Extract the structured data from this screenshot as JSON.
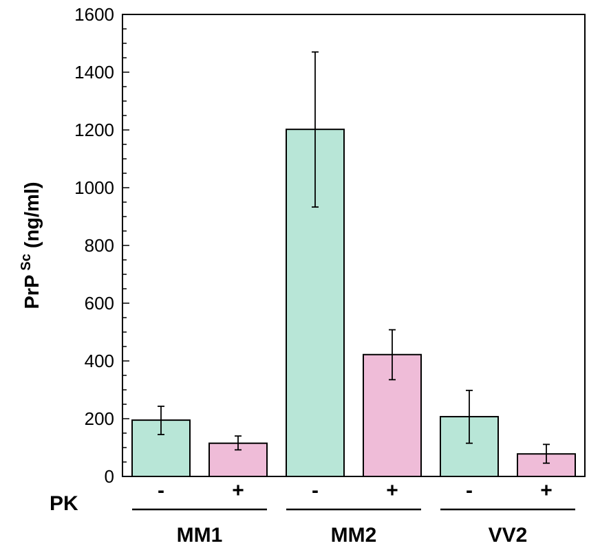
{
  "chart_data": {
    "type": "bar",
    "ylabel_main": "PrP",
    "ylabel_sup": "Sc",
    "ylabel_unit": "(ng/ml)",
    "ylim": [
      0,
      1600
    ],
    "yticks": [
      "0",
      "200",
      "400",
      "600",
      "800",
      "1000",
      "1200",
      "1400",
      "1600"
    ],
    "minor_ytick_step": 50,
    "grid": false,
    "row_label": "PK",
    "groups": [
      {
        "label": "MM1",
        "bars": [
          {
            "pk": "-",
            "value": 195,
            "err_low": 145,
            "err_high": 243
          },
          {
            "pk": "+",
            "value": 115,
            "err_low": 92,
            "err_high": 140
          }
        ]
      },
      {
        "label": "MM2",
        "bars": [
          {
            "pk": "-",
            "value": 1202,
            "err_low": 933,
            "err_high": 1470
          },
          {
            "pk": "+",
            "value": 422,
            "err_low": 335,
            "err_high": 508
          }
        ]
      },
      {
        "label": "VV2",
        "bars": [
          {
            "pk": "-",
            "value": 207,
            "err_low": 115,
            "err_high": 298
          },
          {
            "pk": "+",
            "value": 78,
            "err_low": 46,
            "err_high": 111
          }
        ]
      }
    ],
    "colors": {
      "pk_minus": "#b8e6d7",
      "pk_plus": "#efbcd8",
      "stroke": "#000000"
    }
  }
}
